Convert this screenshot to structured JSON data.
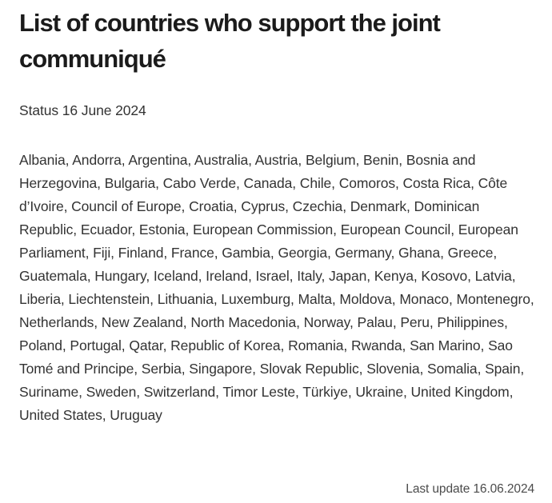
{
  "document": {
    "title": "List of countries who support the joint communiqué",
    "status": "Status 16 June 2024",
    "countries": [
      "Albania",
      "Andorra",
      "Argentina",
      "Australia",
      "Austria",
      "Belgium",
      "Benin",
      "Bosnia and Herzegovina",
      "Bulgaria",
      "Cabo Verde",
      "Canada",
      "Chile",
      "Comoros",
      "Costa Rica",
      "Côte d’Ivoire",
      "Council of Europe",
      "Croatia",
      "Cyprus",
      "Czechia",
      "Denmark",
      "Dominican Republic",
      "Ecuador",
      "Estonia",
      "European Commission",
      "European Council",
      "European Parliament",
      "Fiji",
      "Finland",
      "France",
      "Gambia",
      "Georgia",
      "Germany",
      "Ghana",
      "Greece",
      "Guatemala",
      "Hungary",
      "Iceland",
      "Ireland",
      "Israel",
      "Italy",
      "Japan",
      "Kenya",
      "Kosovo",
      "Latvia",
      "Liberia",
      "Liechtenstein",
      "Lithuania",
      "Luxemburg",
      "Malta",
      "Moldova",
      "Monaco",
      "Montenegro",
      "Netherlands",
      "New Zealand",
      "North Macedonia",
      "Norway",
      "Palau",
      "Peru",
      "Philippines",
      "Poland",
      "Portugal",
      "Qatar",
      "Republic of Korea",
      "Romania",
      "Rwanda",
      "San Marino",
      "Sao Tomé and Principe",
      "Serbia",
      "Singapore",
      "Slovak Republic",
      "Slovenia",
      "Somalia",
      "Spain",
      "Suriname",
      "Sweden",
      "Switzerland",
      "Timor Leste",
      "Türkiye",
      "Ukraine",
      "United Kingdom",
      "United States",
      "Uruguay"
    ],
    "footer": {
      "last_update": "Last update 16.06.2024"
    }
  },
  "colors": {
    "background": "#ffffff",
    "title_text": "#1b1b1b",
    "body_text": "#333333",
    "footer_text": "#4b4b4b"
  }
}
